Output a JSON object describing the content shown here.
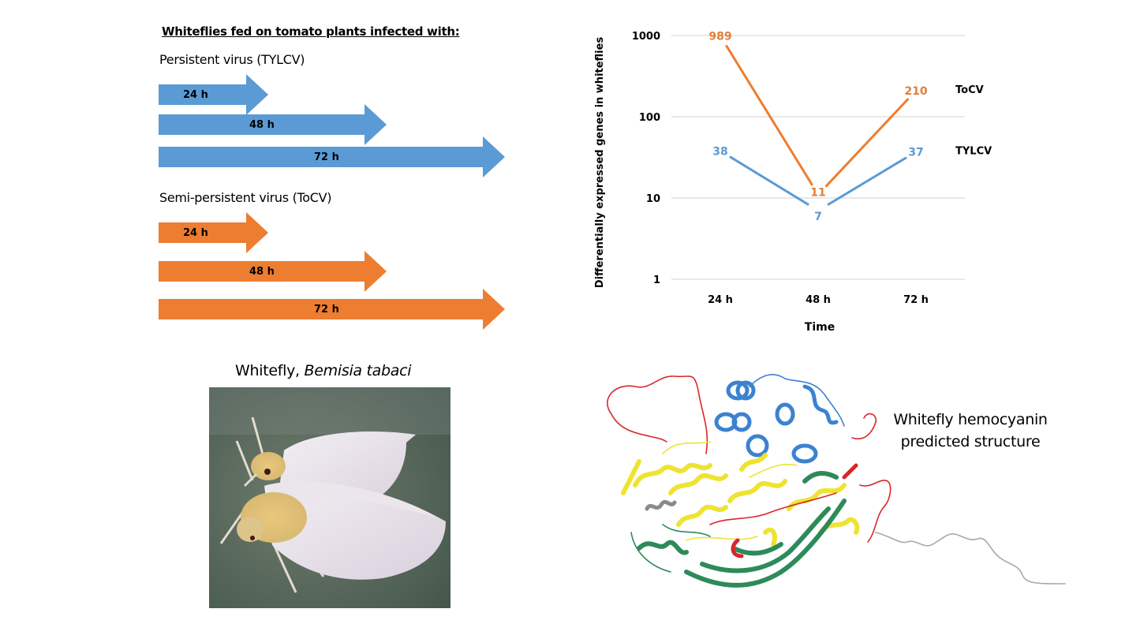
{
  "colors": {
    "tylcv": "#5B9BD5",
    "tocv": "#ED7D31",
    "tylcv_label": "#5B9BD5",
    "tocv_label": "#E07F3A",
    "grid": "#D9D9D9"
  },
  "left_panel": {
    "heading": "Whiteflies fed on tomato plants infected with:",
    "groups": [
      {
        "title": "Persistent virus (TYLCV)",
        "color": "#5B9BD5",
        "arrows": [
          {
            "label": "24 h",
            "hours": 24
          },
          {
            "label": "48 h",
            "hours": 48
          },
          {
            "label": "72 h",
            "hours": 72
          }
        ]
      },
      {
        "title": "Semi-persistent virus (ToCV)",
        "color": "#ED7D31",
        "arrows": [
          {
            "label": "24 h",
            "hours": 24
          },
          {
            "label": "48 h",
            "hours": 48
          },
          {
            "label": "72 h",
            "hours": 72
          }
        ]
      }
    ]
  },
  "photo": {
    "caption_prefix": "Whitefly, ",
    "caption_species": "Bemisia tabaci"
  },
  "structure": {
    "caption_line1": "Whitefly hemocyanin",
    "caption_line2": "predicted structure"
  },
  "chart_data": {
    "type": "line",
    "title": "",
    "xlabel": "Time",
    "ylabel": "Differentially expressed genes in whiteflies",
    "yscale": "log",
    "ylim": [
      1,
      1000
    ],
    "yticks": [
      "1",
      "10",
      "100",
      "1000"
    ],
    "categories": [
      "24 h",
      "48 h",
      "72 h"
    ],
    "grid": true,
    "series": [
      {
        "name": "ToCV",
        "values": [
          989,
          11,
          210
        ],
        "labels": [
          "989",
          "11",
          "210"
        ],
        "color": "#ED7D31"
      },
      {
        "name": "TYLCV",
        "values": [
          38,
          7,
          37
        ],
        "labels": [
          "38",
          "7",
          "37"
        ],
        "color": "#5B9BD5"
      }
    ],
    "legend": "right-inline"
  }
}
